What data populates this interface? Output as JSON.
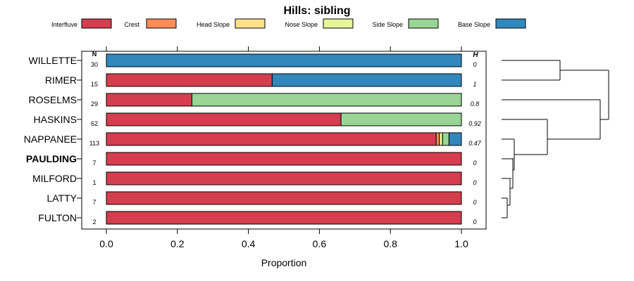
{
  "chart_data": {
    "type": "bar",
    "orientation": "horizontal",
    "stacked": true,
    "title": "Hills: sibling",
    "xlabel": "Proportion",
    "ylabel": "",
    "xlim": [
      0,
      1
    ],
    "xticks": [
      "0.0",
      "0.2",
      "0.4",
      "0.6",
      "0.8",
      "1.0"
    ],
    "n_header": "N",
    "h_header": "H",
    "highlighted": "PAULDING",
    "legend": [
      {
        "name": "Interfluve",
        "color": "#d53e4f"
      },
      {
        "name": "Crest",
        "color": "#fc8d59"
      },
      {
        "name": "Head Slope",
        "color": "#fee08b"
      },
      {
        "name": "Nose Slope",
        "color": "#e6f598"
      },
      {
        "name": "Side Slope",
        "color": "#99d594"
      },
      {
        "name": "Base Slope",
        "color": "#3288bd"
      }
    ],
    "rows": [
      {
        "label": "WILLETTE",
        "n": "30",
        "h": "0",
        "values": [
          0,
          0,
          0,
          0,
          0,
          1.0
        ]
      },
      {
        "label": "RIMER",
        "n": "15",
        "h": "1",
        "values": [
          0.467,
          0,
          0,
          0,
          0,
          0.533
        ]
      },
      {
        "label": "ROSELMS",
        "n": "29",
        "h": "0.8",
        "values": [
          0.241,
          0,
          0,
          0,
          0.759,
          0
        ]
      },
      {
        "label": "HASKINS",
        "n": "62",
        "h": "0.92",
        "values": [
          0.661,
          0,
          0,
          0,
          0.339,
          0
        ]
      },
      {
        "label": "NAPPANEE",
        "n": "113",
        "h": "0.47",
        "values": [
          0.929,
          0.009,
          0,
          0.009,
          0.018,
          0.035
        ]
      },
      {
        "label": "PAULDING",
        "n": "7",
        "h": "0",
        "values": [
          1.0,
          0,
          0,
          0,
          0,
          0
        ]
      },
      {
        "label": "MILFORD",
        "n": "1",
        "h": "0",
        "values": [
          1.0,
          0,
          0,
          0,
          0,
          0
        ]
      },
      {
        "label": "LATTY",
        "n": "7",
        "h": "0",
        "values": [
          1.0,
          0,
          0,
          0,
          0,
          0
        ]
      },
      {
        "label": "FULTON",
        "n": "2",
        "h": "0",
        "values": [
          1.0,
          0,
          0,
          0,
          0,
          0
        ]
      }
    ]
  }
}
